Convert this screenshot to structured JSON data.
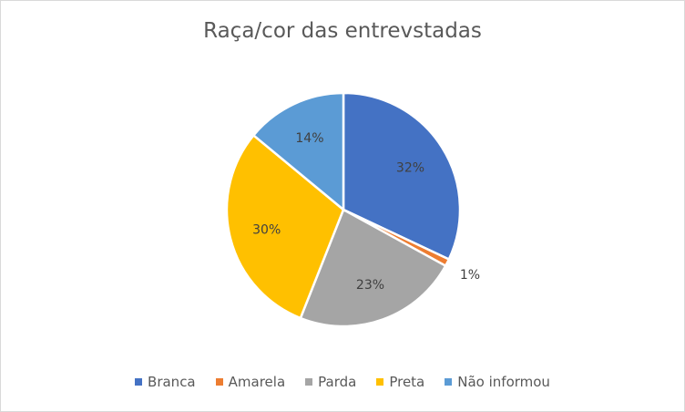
{
  "chart_data": {
    "type": "pie",
    "title": "Raça/cor das entrevstadas",
    "categories": [
      "Branca",
      "Amarela",
      "Parda",
      "Preta",
      "Não informou"
    ],
    "values": [
      32,
      1,
      23,
      30,
      14
    ],
    "labels": [
      "32%",
      "1%",
      "23%",
      "30%",
      "14%"
    ],
    "colors": [
      "#4472c4",
      "#ed7d31",
      "#a5a5a5",
      "#ffc000",
      "#5b9bd5"
    ],
    "legend_position": "bottom"
  }
}
